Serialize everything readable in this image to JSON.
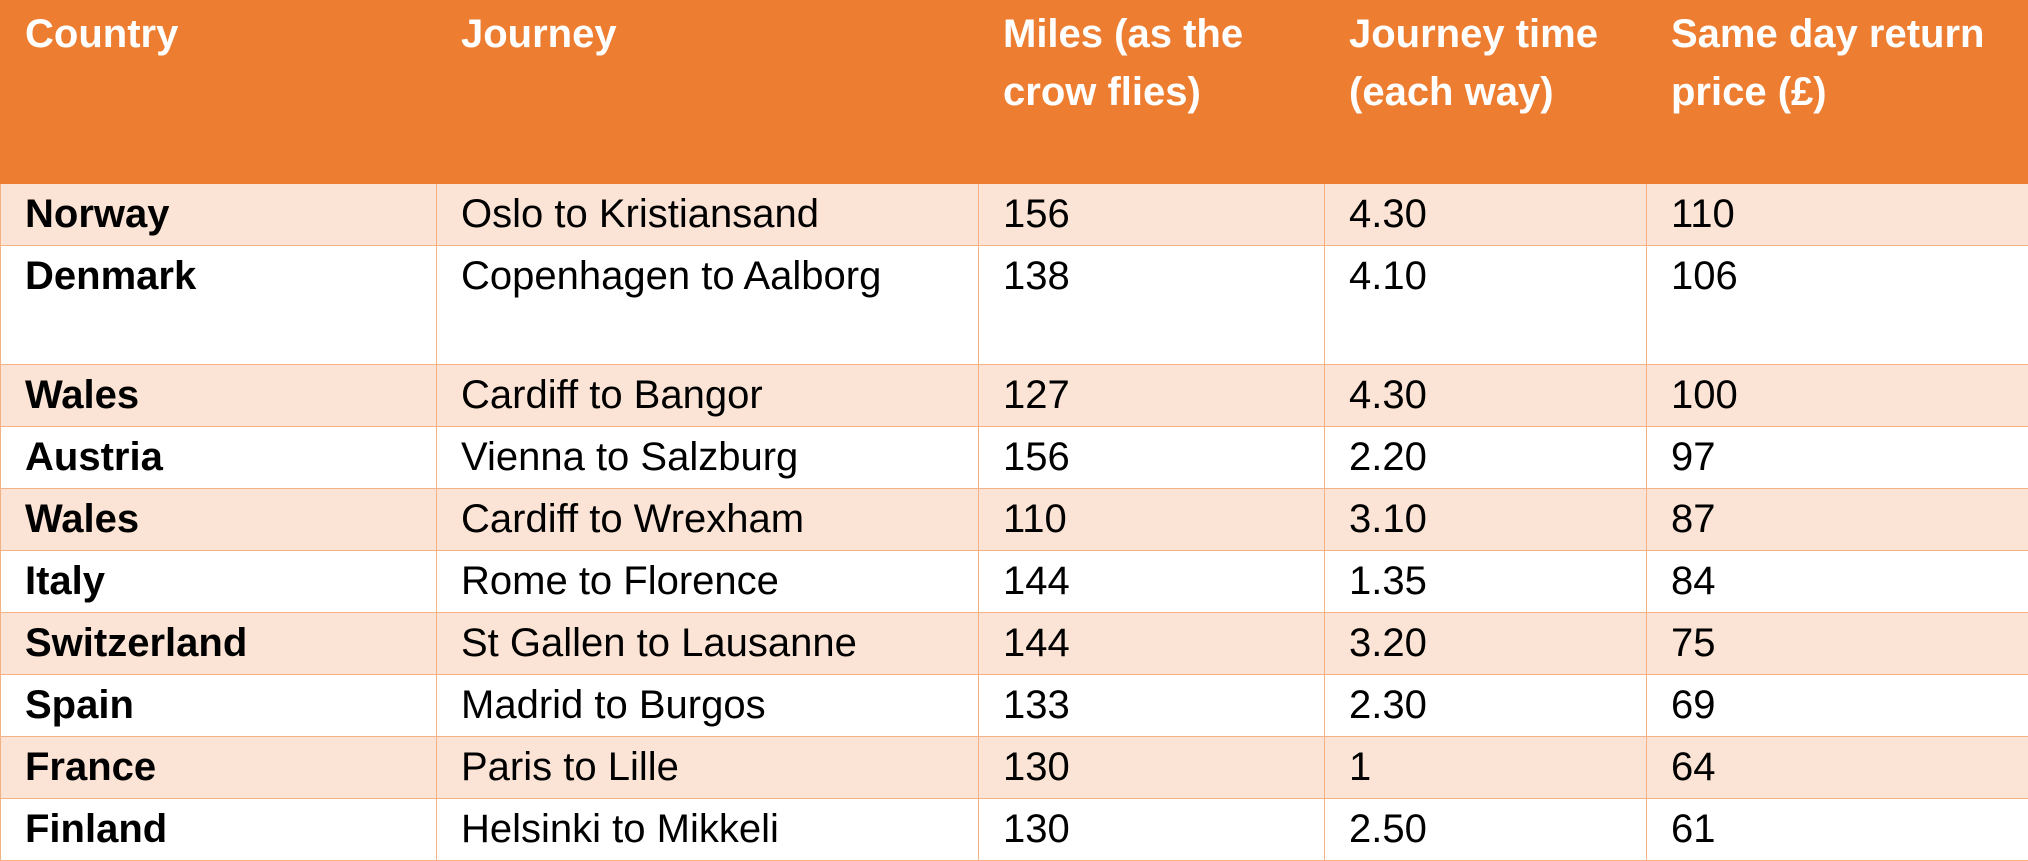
{
  "table": {
    "headers": [
      "Country",
      "Journey",
      "Miles (as the crow flies)",
      "Journey time (each way)",
      "Same day return price (£)"
    ],
    "rows": [
      {
        "country": "Norway",
        "journey": "Oslo to Kristiansand",
        "miles": "156",
        "time": "4.30",
        "price": "110"
      },
      {
        "country": "Denmark",
        "journey": "Copenhagen to Aalborg",
        "miles": "138",
        "time": "4.10",
        "price": "106"
      },
      {
        "country": "Wales",
        "journey": "Cardiff to Bangor",
        "miles": "127",
        "time": "4.30",
        "price": "100"
      },
      {
        "country": "Austria",
        "journey": "Vienna to Salzburg",
        "miles": "156",
        "time": "2.20",
        "price": "97"
      },
      {
        "country": "Wales",
        "journey": "Cardiff to Wrexham",
        "miles": "110",
        "time": "3.10",
        "price": "87"
      },
      {
        "country": "Italy",
        "journey": "Rome to Florence",
        "miles": "144",
        "time": "1.35",
        "price": "84"
      },
      {
        "country": "Switzerland",
        "journey": "St Gallen to Lausanne",
        "miles": "144",
        "time": "3.20",
        "price": "75"
      },
      {
        "country": "Spain",
        "journey": "Madrid to Burgos",
        "miles": "133",
        "time": "2.30",
        "price": "69"
      },
      {
        "country": "France",
        "journey": "Paris to Lille",
        "miles": "130",
        "time": "1",
        "price": "64"
      },
      {
        "country": "Finland",
        "journey": "Helsinki to Mikkeli",
        "miles": "130",
        "time": "2.50",
        "price": "61"
      }
    ]
  },
  "colors": {
    "header_bg": "#ED7D31",
    "header_text": "#FFFFFF",
    "band_bg": "#FBE4D5",
    "border": "#F4B183"
  }
}
